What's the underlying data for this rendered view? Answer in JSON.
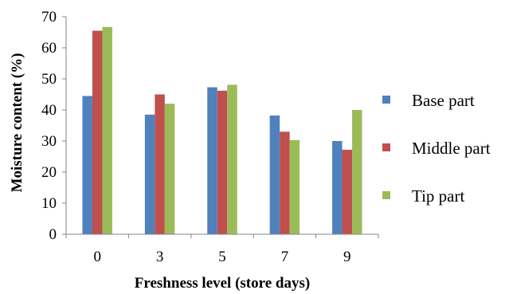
{
  "chart_data": {
    "type": "bar",
    "title": "",
    "xlabel": "Freshness level (store days)",
    "ylabel": "Moisture content (%)",
    "categories": [
      "0",
      "3",
      "5",
      "7",
      "9"
    ],
    "ylim": [
      0,
      70
    ],
    "yticks": [
      0,
      10,
      20,
      30,
      40,
      50,
      60,
      70
    ],
    "grid": false,
    "legend_position": "right",
    "series": [
      {
        "name": "Base part",
        "color": "#4f81bd",
        "values": [
          44.5,
          38.5,
          47.3,
          38.2,
          30.0
        ]
      },
      {
        "name": "Middle part",
        "color": "#c0504d",
        "values": [
          65.5,
          45.0,
          46.2,
          33.0,
          27.2
        ]
      },
      {
        "name": "Tip part",
        "color": "#9bbb59",
        "values": [
          66.7,
          42.0,
          48.1,
          30.3,
          40.0
        ]
      }
    ]
  }
}
